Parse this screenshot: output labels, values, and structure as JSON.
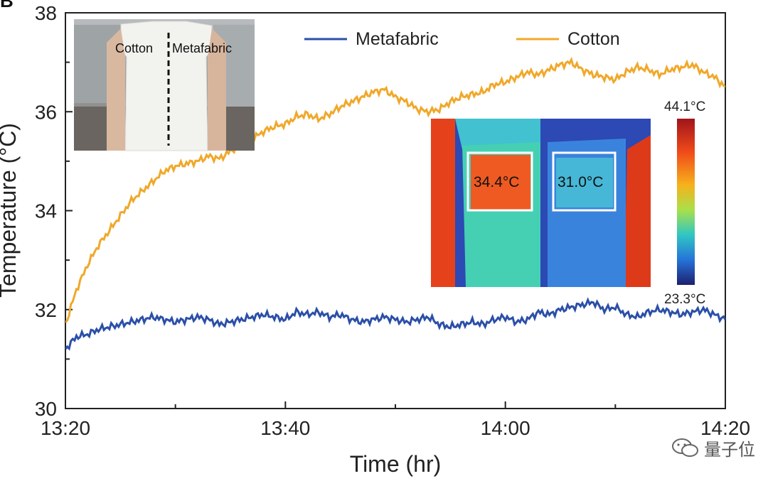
{
  "panel_label": "B",
  "inset_photo": {
    "left_label": "Cotton",
    "right_label": "Metafabric"
  },
  "thermal_inset": {
    "left_box_temp": "34.4°C",
    "right_box_temp": "31.0°C",
    "scale_max_label": "44.1°C",
    "scale_min_label": "23.3°C"
  },
  "watermark": {
    "text": "量子位",
    "icon": "wechat-icon"
  },
  "colors": {
    "metafabric": "#2b4fa8",
    "cotton": "#f0a82a"
  },
  "chart_data": {
    "type": "line",
    "xlabel": "Time (hr)",
    "ylabel": "Temperature (°C)",
    "xlim": [
      0,
      60
    ],
    "ylim": [
      30,
      38
    ],
    "x_ticks": [
      0,
      20,
      40,
      60
    ],
    "x_tick_labels": [
      "13:20",
      "13:40",
      "14:00",
      "14:20"
    ],
    "y_ticks": [
      30,
      32,
      34,
      36,
      38
    ],
    "y_tick_labels": [
      "30",
      "32",
      "34",
      "36",
      "38"
    ],
    "legend_position": "top",
    "x": [
      0,
      1,
      2,
      3,
      4,
      5,
      6,
      7,
      8,
      9,
      10,
      11,
      12,
      13,
      14,
      15,
      16,
      17,
      18,
      19,
      20,
      21,
      22,
      23,
      24,
      25,
      26,
      27,
      28,
      29,
      30,
      31,
      32,
      33,
      34,
      35,
      36,
      37,
      38,
      39,
      40,
      41,
      42,
      43,
      44,
      45,
      46,
      47,
      48,
      49,
      50,
      51,
      52,
      53,
      54,
      55,
      56,
      57,
      58,
      59,
      60
    ],
    "series": [
      {
        "name": "Metafabric",
        "color": "#2b4fa8",
        "values": [
          31.2,
          31.45,
          31.5,
          31.6,
          31.65,
          31.7,
          31.75,
          31.8,
          31.85,
          31.8,
          31.75,
          31.8,
          31.85,
          31.8,
          31.7,
          31.75,
          31.8,
          31.85,
          31.9,
          31.85,
          31.8,
          31.95,
          31.9,
          31.95,
          31.85,
          31.9,
          31.8,
          31.75,
          31.8,
          31.85,
          31.8,
          31.75,
          31.8,
          31.85,
          31.7,
          31.65,
          31.7,
          31.75,
          31.7,
          31.8,
          31.85,
          31.75,
          31.8,
          31.95,
          31.9,
          32.0,
          32.05,
          32.1,
          32.15,
          32.0,
          32.05,
          31.9,
          31.85,
          31.95,
          32.0,
          31.95,
          31.9,
          31.95,
          32.0,
          31.9,
          31.8
        ]
      },
      {
        "name": "Cotton",
        "color": "#f0a82a",
        "values": [
          31.7,
          32.4,
          32.9,
          33.3,
          33.6,
          33.9,
          34.2,
          34.4,
          34.6,
          34.8,
          34.9,
          34.95,
          35.0,
          35.1,
          35.05,
          35.2,
          35.35,
          35.45,
          35.6,
          35.7,
          35.75,
          35.9,
          35.95,
          35.85,
          35.95,
          36.1,
          36.2,
          36.3,
          36.4,
          36.45,
          36.3,
          36.2,
          36.05,
          36.0,
          36.05,
          36.2,
          36.3,
          36.35,
          36.4,
          36.55,
          36.6,
          36.7,
          36.8,
          36.75,
          36.85,
          36.95,
          37.0,
          36.85,
          36.75,
          36.7,
          36.65,
          36.8,
          36.9,
          36.85,
          36.75,
          36.85,
          36.9,
          36.95,
          36.8,
          36.7,
          36.5
        ]
      }
    ]
  }
}
